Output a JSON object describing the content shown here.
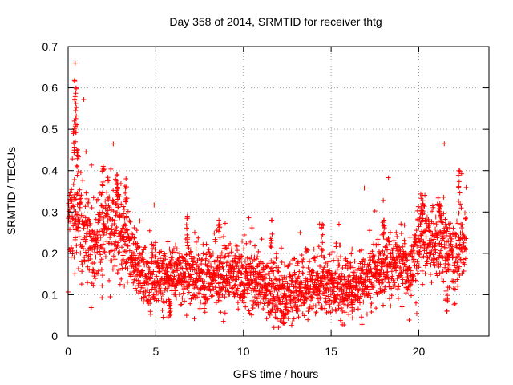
{
  "chart_data": {
    "type": "scatter",
    "title": "Day 358 of 2014, SRMTID for receiver thtg",
    "xlabel": "GPS time / hours",
    "ylabel": "SRMTID / TECUs",
    "xlim": [
      0,
      24
    ],
    "ylim": [
      0,
      0.7
    ],
    "xticks": [
      0,
      5,
      10,
      15,
      20
    ],
    "xtick_labels": [
      "0",
      "5",
      "10",
      "15",
      "20"
    ],
    "yticks": [
      0,
      0.1,
      0.2,
      0.3,
      0.4,
      0.5,
      0.6,
      0.7
    ],
    "ytick_labels": [
      "0",
      "0.1",
      "0.2",
      "0.3",
      "0.4",
      "0.5",
      "0.6",
      "0.7"
    ],
    "grid": true,
    "marker": "+",
    "color": "#ff0000",
    "x_range_of_data": [
      0,
      22.7
    ],
    "trend": [
      {
        "x": 0.0,
        "y": 0.28
      },
      {
        "x": 0.25,
        "y": 0.3
      },
      {
        "x": 0.5,
        "y": 0.3
      },
      {
        "x": 0.75,
        "y": 0.26
      },
      {
        "x": 1.0,
        "y": 0.25
      },
      {
        "x": 1.5,
        "y": 0.22
      },
      {
        "x": 2.0,
        "y": 0.26
      },
      {
        "x": 2.5,
        "y": 0.27
      },
      {
        "x": 3.0,
        "y": 0.25
      },
      {
        "x": 3.5,
        "y": 0.22
      },
      {
        "x": 4.0,
        "y": 0.16
      },
      {
        "x": 4.5,
        "y": 0.14
      },
      {
        "x": 5.0,
        "y": 0.15
      },
      {
        "x": 6.0,
        "y": 0.14
      },
      {
        "x": 7.0,
        "y": 0.15
      },
      {
        "x": 8.0,
        "y": 0.14
      },
      {
        "x": 9.0,
        "y": 0.15
      },
      {
        "x": 10.0,
        "y": 0.14
      },
      {
        "x": 11.0,
        "y": 0.13
      },
      {
        "x": 12.0,
        "y": 0.1
      },
      {
        "x": 13.0,
        "y": 0.11
      },
      {
        "x": 14.0,
        "y": 0.12
      },
      {
        "x": 15.0,
        "y": 0.12
      },
      {
        "x": 16.0,
        "y": 0.12
      },
      {
        "x": 17.0,
        "y": 0.14
      },
      {
        "x": 18.0,
        "y": 0.17
      },
      {
        "x": 19.0,
        "y": 0.18
      },
      {
        "x": 19.5,
        "y": 0.15
      },
      {
        "x": 20.0,
        "y": 0.25
      },
      {
        "x": 20.5,
        "y": 0.22
      },
      {
        "x": 21.0,
        "y": 0.24
      },
      {
        "x": 21.5,
        "y": 0.22
      },
      {
        "x": 22.0,
        "y": 0.19
      },
      {
        "x": 22.5,
        "y": 0.22
      },
      {
        "x": 22.7,
        "y": 0.22
      }
    ],
    "spikes": [
      {
        "x": 0.4,
        "y": 0.66
      },
      {
        "x": 0.45,
        "y": 0.6
      },
      {
        "x": 0.35,
        "y": 0.52
      },
      {
        "x": 0.55,
        "y": 0.45
      },
      {
        "x": 2.0,
        "y": 0.41
      },
      {
        "x": 2.8,
        "y": 0.39
      },
      {
        "x": 3.3,
        "y": 0.38
      },
      {
        "x": 6.8,
        "y": 0.29
      },
      {
        "x": 8.6,
        "y": 0.28
      },
      {
        "x": 11.6,
        "y": 0.28
      },
      {
        "x": 14.5,
        "y": 0.27
      },
      {
        "x": 18.0,
        "y": 0.28
      },
      {
        "x": 20.2,
        "y": 0.34
      },
      {
        "x": 21.2,
        "y": 0.32
      },
      {
        "x": 22.3,
        "y": 0.4
      },
      {
        "x": 12.3,
        "y": 0.03
      },
      {
        "x": 16.2,
        "y": 0.06
      },
      {
        "x": 21.6,
        "y": 0.06
      },
      {
        "x": 5.8,
        "y": 0.05
      }
    ],
    "spread": 0.05,
    "num_points": 2600
  }
}
